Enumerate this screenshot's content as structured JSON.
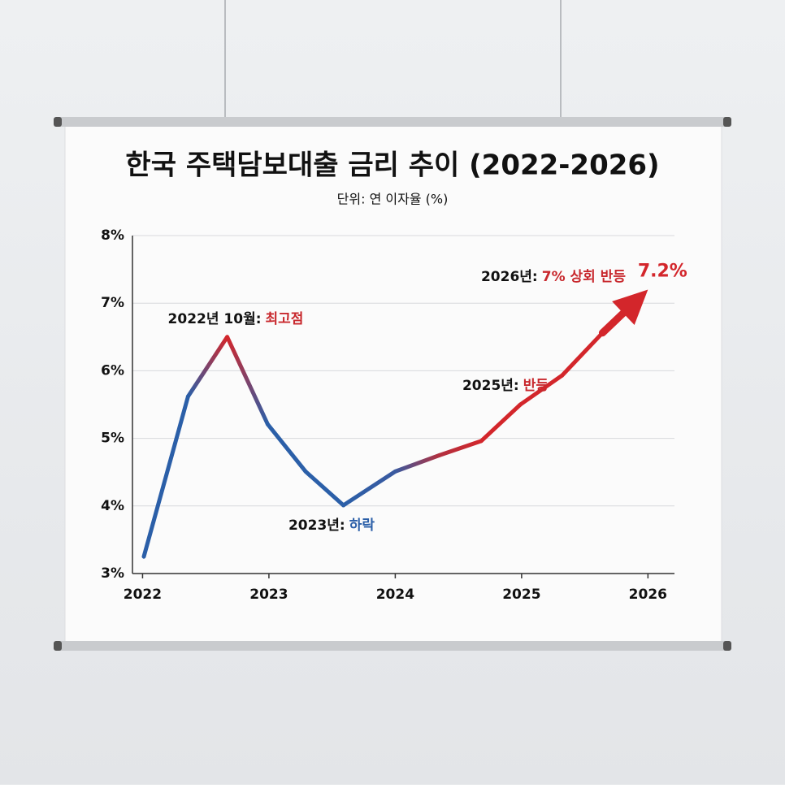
{
  "chart_data": {
    "type": "line",
    "title": "한국 주택담보대출 금리 추이 (2022-2026)",
    "subtitle": "단위: 연 이자율 (%)",
    "x": [
      2022.01,
      2022.36,
      2022.67,
      2022.99,
      2023.29,
      2023.59,
      2024.0,
      2024.35,
      2024.68,
      2024.99,
      2025.32,
      2025.64,
      2026.0
    ],
    "series": [
      {
        "values": [
          3.25,
          5.62,
          6.5,
          5.21,
          4.51,
          4.01,
          4.51,
          4.75,
          4.96,
          5.5,
          5.93,
          6.56,
          7.2
        ],
        "value_labels": [
          null,
          null,
          null,
          null,
          null,
          null,
          null,
          null,
          null,
          null,
          null,
          null,
          "7.2%"
        ],
        "colors": [
          "#2b5fa8",
          "#2b5fa8",
          "#d3262b",
          "#2b5fa8",
          "#2b5fa8",
          "#2b5fa8",
          "#3a5aa0",
          "#b2303f",
          "#d3262b",
          "#d3262b",
          "#d3262b",
          "#d3262b",
          "#d3262b"
        ]
      }
    ],
    "annotations": [
      {
        "text": "2022년 10월:",
        "highlight": "최고점",
        "color": "#c8282d"
      },
      {
        "text": "2023년:",
        "highlight": "하락",
        "color": "#2b5fa8"
      },
      {
        "text": "2025년:",
        "highlight": "반등",
        "color": "#c8282d"
      },
      {
        "text": "2026년:",
        "highlight": "7% 상회 반등",
        "color": "#c8282d"
      }
    ],
    "xlim": [
      2021.92,
      2026.21
    ],
    "xticks": [
      2022,
      2023,
      2024,
      2025,
      2026
    ],
    "ylim": [
      3,
      8
    ],
    "yticks": [
      {
        "value": 3,
        "label": "3%"
      },
      {
        "value": 4,
        "label": "4%"
      },
      {
        "value": 5,
        "label": "5%"
      },
      {
        "value": 6,
        "label": "6%"
      },
      {
        "value": 7,
        "label": "7%"
      },
      {
        "value": 8,
        "label": "8%"
      }
    ],
    "grid": true
  }
}
